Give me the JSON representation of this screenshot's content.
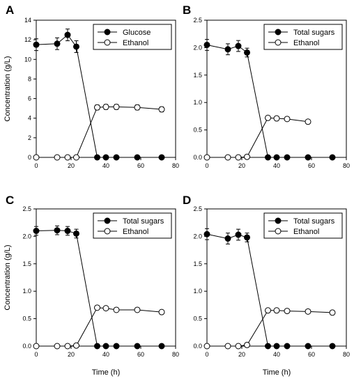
{
  "chart_data": [
    {
      "panel": "A",
      "type": "line",
      "ylabel": "Concentration (g/L)",
      "xlabel": "",
      "xlim": [
        0,
        80
      ],
      "ylim": [
        0,
        14
      ],
      "xticks": [
        "0",
        "20",
        "40",
        "60",
        "80"
      ],
      "yticks": [
        "0",
        "2",
        "4",
        "6",
        "8",
        "10",
        "12",
        "14"
      ],
      "legend_position": "top-right",
      "series": [
        {
          "name": "Glucose",
          "marker": "filled",
          "x": [
            0,
            12,
            18,
            23,
            35,
            40,
            46,
            58,
            72
          ],
          "y": [
            11.5,
            11.6,
            12.5,
            11.3,
            0,
            0,
            0,
            0,
            0
          ],
          "err": [
            0.6,
            0.6,
            0.6,
            0.6,
            0,
            0,
            0,
            0,
            0
          ]
        },
        {
          "name": "Ethanol",
          "marker": "open",
          "x": [
            0,
            12,
            18,
            23,
            35,
            40,
            46,
            58,
            72
          ],
          "y": [
            0,
            0,
            0,
            0,
            5.1,
            5.15,
            5.15,
            5.1,
            4.9
          ],
          "err": [
            0,
            0,
            0,
            0,
            0.25,
            0.25,
            0.25,
            0.25,
            0.25
          ]
        }
      ]
    },
    {
      "panel": "B",
      "type": "line",
      "ylabel": "",
      "xlabel": "",
      "xlim": [
        0,
        80
      ],
      "ylim": [
        0,
        2.5
      ],
      "xticks": [
        "0",
        "20",
        "40",
        "60",
        "80"
      ],
      "yticks": [
        "0.0",
        "0.5",
        "1.0",
        "1.5",
        "2.0",
        "2.5"
      ],
      "legend_position": "top-right",
      "series": [
        {
          "name": "Total sugars",
          "marker": "filled",
          "x": [
            0,
            12,
            18,
            23,
            35,
            40,
            46,
            58,
            72
          ],
          "y": [
            2.05,
            1.97,
            2.03,
            1.91,
            0,
            0,
            0,
            0,
            0
          ],
          "err": [
            0.1,
            0.1,
            0.1,
            0.08,
            0,
            0,
            0,
            0,
            0
          ]
        },
        {
          "name": "Ethanol",
          "marker": "open",
          "x": [
            0,
            12,
            18,
            23,
            35,
            40,
            46,
            58
          ],
          "y": [
            0,
            0,
            0,
            0.01,
            0.72,
            0.71,
            0.7,
            0.65
          ],
          "err": [
            0,
            0,
            0,
            0,
            0.03,
            0.03,
            0.03,
            0.03
          ]
        }
      ]
    },
    {
      "panel": "C",
      "type": "line",
      "ylabel": "Concentration (g/L)",
      "xlabel": "Time (h)",
      "xlim": [
        0,
        80
      ],
      "ylim": [
        0,
        2.5
      ],
      "xticks": [
        "0",
        "20",
        "40",
        "60",
        "80"
      ],
      "yticks": [
        "0.0",
        "0.5",
        "1.0",
        "1.5",
        "2.0",
        "2.5"
      ],
      "legend_position": "top-right",
      "series": [
        {
          "name": "Total sugars",
          "marker": "filled",
          "x": [
            0,
            12,
            18,
            23,
            35,
            40,
            46,
            58,
            72
          ],
          "y": [
            2.1,
            2.11,
            2.1,
            2.05,
            0,
            0,
            0,
            0,
            0
          ],
          "err": [
            0.08,
            0.08,
            0.08,
            0.08,
            0,
            0,
            0,
            0,
            0
          ]
        },
        {
          "name": "Ethanol",
          "marker": "open",
          "x": [
            0,
            12,
            18,
            23,
            35,
            40,
            46,
            58,
            72
          ],
          "y": [
            0,
            0,
            0,
            0.01,
            0.7,
            0.69,
            0.66,
            0.66,
            0.62
          ],
          "err": [
            0,
            0,
            0,
            0,
            0.03,
            0.03,
            0.03,
            0.03,
            0.03
          ]
        }
      ]
    },
    {
      "panel": "D",
      "type": "line",
      "ylabel": "",
      "xlabel": "Time (h)",
      "xlim": [
        0,
        80
      ],
      "ylim": [
        0,
        2.5
      ],
      "xticks": [
        "0",
        "20",
        "40",
        "60",
        "80"
      ],
      "yticks": [
        "0.0",
        "0.5",
        "1.0",
        "1.5",
        "2.0",
        "2.5"
      ],
      "legend_position": "top-right",
      "series": [
        {
          "name": "Total sugars",
          "marker": "filled",
          "x": [
            0,
            12,
            18,
            23,
            35,
            40,
            46,
            58,
            72
          ],
          "y": [
            2.04,
            1.96,
            2.03,
            1.98,
            0,
            0,
            0,
            0,
            0
          ],
          "err": [
            0.1,
            0.1,
            0.1,
            0.08,
            0,
            0,
            0,
            0,
            0
          ]
        },
        {
          "name": "Ethanol",
          "marker": "open",
          "x": [
            0,
            12,
            18,
            23,
            35,
            40,
            46,
            58,
            72
          ],
          "y": [
            0,
            0,
            0,
            0.02,
            0.65,
            0.65,
            0.64,
            0.63,
            0.61
          ],
          "err": [
            0,
            0,
            0,
            0,
            0.03,
            0.03,
            0.03,
            0.03,
            0.03
          ]
        }
      ]
    }
  ]
}
